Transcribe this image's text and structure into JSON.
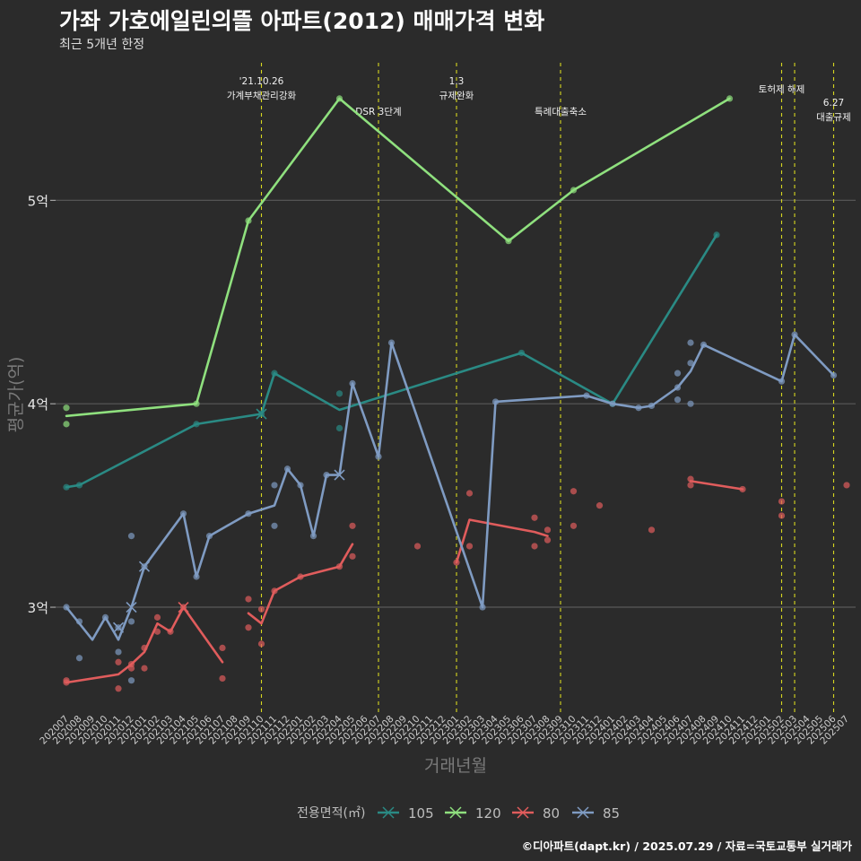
{
  "title": "가좌 가호에일린의뜰 아파트(2012) 매매가격 변화",
  "subtitle": "최근 5개년 한정",
  "caption": "©디아파트(dapt.kr) / 2025.07.29 / 자료=국토교통부 실거래가",
  "chart_data": {
    "type": "line",
    "xlabel": "거래년월",
    "ylabel": "평균가(억)",
    "ylim": [
      2.48,
      5.72
    ],
    "yticks": [
      {
        "v": 3,
        "label": "3억"
      },
      {
        "v": 4,
        "label": "4억"
      },
      {
        "v": 5,
        "label": "5억"
      }
    ],
    "grid": true,
    "legend": {
      "title": "전용면적(㎡)",
      "position": "bottom"
    },
    "x_labels": [
      "202007",
      "202008",
      "202009",
      "202010",
      "202011",
      "202012",
      "202101",
      "202102",
      "202103",
      "202104",
      "202105",
      "202106",
      "202107",
      "202108",
      "202109",
      "202110",
      "202111",
      "202112",
      "202201",
      "202202",
      "202203",
      "202204",
      "202205",
      "202206",
      "202207",
      "202208",
      "202209",
      "202210",
      "202211",
      "202212",
      "202301",
      "202302",
      "202303",
      "202304",
      "202305",
      "202306",
      "202307",
      "202308",
      "202309",
      "202310",
      "202311",
      "202312",
      "202401",
      "202402",
      "202403",
      "202404",
      "202405",
      "202406",
      "202407",
      "202408",
      "202409",
      "202410",
      "202411",
      "202412",
      "202501",
      "202502",
      "202503",
      "202504",
      "202505",
      "202506",
      "202507"
    ],
    "events": [
      {
        "x": "202110",
        "lines": [
          "'21.10.26",
          "가계부채관리강화"
        ]
      },
      {
        "x": "202207",
        "lines": [
          "DSR 3단계"
        ]
      },
      {
        "x": "202301",
        "lines": [
          "1.3",
          "규제완화"
        ]
      },
      {
        "x": "202309",
        "lines": [
          "특례대출축소"
        ]
      },
      {
        "x": "202502",
        "lines": [
          "토허제 해제"
        ]
      },
      {
        "x": "202503",
        "lines": []
      },
      {
        "x": "202506",
        "lines": [
          "6.27",
          "대출규제"
        ]
      }
    ],
    "series": [
      {
        "name": "105",
        "color": "#2a8a84",
        "line": [
          [
            "202007",
            3.59
          ],
          [
            "202008",
            3.6
          ],
          [
            "202105",
            3.9
          ],
          [
            "202110",
            3.95
          ],
          [
            "202111",
            4.15
          ],
          [
            "202204",
            3.97
          ],
          [
            "202306",
            4.25
          ],
          [
            "202401",
            4.0
          ],
          [
            "202409",
            4.83
          ]
        ],
        "points": [
          [
            "202007",
            3.59
          ],
          [
            "202008",
            3.6
          ],
          [
            "202105",
            3.9
          ],
          [
            "202110",
            3.95
          ],
          [
            "202111",
            4.15
          ],
          [
            "202204",
            4.05
          ],
          [
            "202204",
            3.88
          ],
          [
            "202306",
            4.25
          ],
          [
            "202401",
            4.0
          ],
          [
            "202409",
            4.83
          ]
        ],
        "crosses": [
          [
            "202110",
            3.95
          ]
        ]
      },
      {
        "name": "120",
        "color": "#8fe07e",
        "line": [
          [
            "202007",
            3.94
          ],
          [
            "202105",
            4.0
          ],
          [
            "202109",
            4.9
          ],
          [
            "202204",
            5.5
          ],
          [
            "202305",
            4.8
          ],
          [
            "202310",
            5.05
          ],
          [
            "202410",
            5.5
          ]
        ],
        "points": [
          [
            "202007",
            3.98
          ],
          [
            "202007",
            3.9
          ],
          [
            "202105",
            4.0
          ],
          [
            "202109",
            4.9
          ],
          [
            "202204",
            5.5
          ],
          [
            "202305",
            4.8
          ],
          [
            "202310",
            5.05
          ],
          [
            "202410",
            5.5
          ]
        ],
        "crosses": []
      },
      {
        "name": "80",
        "color": "#e05c5c",
        "line": [
          [
            [
              "202007",
              2.63
            ],
            [
              "202011",
              2.67
            ],
            [
              "202012",
              2.72
            ],
            [
              "202101",
              2.78
            ],
            [
              "202102",
              2.92
            ],
            [
              "202103",
              2.88
            ],
            [
              "202104",
              3.0
            ],
            [
              "202107",
              2.73
            ]
          ],
          [
            [
              "202109",
              2.97
            ],
            [
              "202110",
              2.92
            ],
            [
              "202111",
              3.08
            ],
            [
              "202201",
              3.15
            ],
            [
              "202204",
              3.2
            ],
            [
              "202205",
              3.31
            ]
          ],
          [
            [
              "202301",
              3.22
            ],
            [
              "202302",
              3.43
            ],
            [
              "202307",
              3.37
            ],
            [
              "202308",
              3.35
            ]
          ],
          [
            [
              "202407",
              3.62
            ],
            [
              "202411",
              3.58
            ]
          ]
        ],
        "points": [
          [
            "202007",
            2.64
          ],
          [
            "202007",
            2.63
          ],
          [
            "202011",
            2.6
          ],
          [
            "202011",
            2.73
          ],
          [
            "202012",
            2.7
          ],
          [
            "202012",
            2.72
          ],
          [
            "202101",
            2.8
          ],
          [
            "202101",
            2.7
          ],
          [
            "202102",
            2.88
          ],
          [
            "202102",
            2.95
          ],
          [
            "202103",
            2.88
          ],
          [
            "202104",
            3.0
          ],
          [
            "202107",
            2.8
          ],
          [
            "202107",
            2.65
          ],
          [
            "202109",
            3.04
          ],
          [
            "202109",
            2.9
          ],
          [
            "202110",
            2.99
          ],
          [
            "202110",
            2.82
          ],
          [
            "202111",
            3.08
          ],
          [
            "202201",
            3.15
          ],
          [
            "202204",
            3.2
          ],
          [
            "202205",
            3.4
          ],
          [
            "202205",
            3.25
          ],
          [
            "202210",
            3.3
          ],
          [
            "202301",
            3.22
          ],
          [
            "202302",
            3.56
          ],
          [
            "202302",
            3.3
          ],
          [
            "202307",
            3.44
          ],
          [
            "202307",
            3.3
          ],
          [
            "202308",
            3.38
          ],
          [
            "202308",
            3.33
          ],
          [
            "202310",
            3.57
          ],
          [
            "202310",
            3.4
          ],
          [
            "202312",
            3.5
          ],
          [
            "202404",
            3.38
          ],
          [
            "202407",
            3.63
          ],
          [
            "202407",
            3.6
          ],
          [
            "202411",
            3.58
          ],
          [
            "202502",
            3.52
          ],
          [
            "202502",
            3.45
          ],
          [
            "202507",
            3.6
          ]
        ],
        "crosses": [
          [
            "202104",
            3.0
          ]
        ]
      },
      {
        "name": "85",
        "color": "#7f9bc2",
        "line": [
          [
            "202007",
            3.0
          ],
          [
            "202009",
            2.84
          ],
          [
            "202010",
            2.95
          ],
          [
            "202011",
            2.84
          ],
          [
            "202012",
            3.0
          ],
          [
            "202101",
            3.2
          ],
          [
            "202104",
            3.46
          ],
          [
            "202105",
            3.15
          ],
          [
            "202106",
            3.35
          ],
          [
            "202109",
            3.46
          ],
          [
            "202111",
            3.5
          ],
          [
            "202112",
            3.68
          ],
          [
            "202201",
            3.6
          ],
          [
            "202202",
            3.35
          ],
          [
            "202203",
            3.65
          ],
          [
            "202204",
            3.65
          ],
          [
            "202205",
            4.1
          ],
          [
            "202207",
            3.74
          ],
          [
            "202208",
            4.3
          ],
          [
            "202303",
            3.0
          ],
          [
            "202304",
            4.01
          ],
          [
            "202311",
            4.04
          ],
          [
            "202401",
            4.0
          ],
          [
            "202403",
            3.98
          ],
          [
            "202404",
            3.99
          ],
          [
            "202406",
            4.08
          ],
          [
            "202407",
            4.16
          ],
          [
            "202408",
            4.29
          ],
          [
            "202502",
            4.11
          ],
          [
            "202503",
            4.34
          ],
          [
            "202506",
            4.14
          ]
        ],
        "points": [
          [
            "202007",
            3.0
          ],
          [
            "202008",
            2.93
          ],
          [
            "202008",
            2.75
          ],
          [
            "202010",
            2.95
          ],
          [
            "202011",
            2.9
          ],
          [
            "202011",
            2.78
          ],
          [
            "202012",
            3.35
          ],
          [
            "202012",
            2.93
          ],
          [
            "202012",
            2.64
          ],
          [
            "202101",
            3.2
          ],
          [
            "202104",
            3.46
          ],
          [
            "202105",
            3.15
          ],
          [
            "202106",
            3.35
          ],
          [
            "202109",
            3.46
          ],
          [
            "202111",
            3.6
          ],
          [
            "202111",
            3.4
          ],
          [
            "202112",
            3.68
          ],
          [
            "202201",
            3.6
          ],
          [
            "202202",
            3.35
          ],
          [
            "202203",
            3.65
          ],
          [
            "202205",
            4.1
          ],
          [
            "202207",
            3.74
          ],
          [
            "202208",
            4.3
          ],
          [
            "202303",
            3.0
          ],
          [
            "202304",
            4.01
          ],
          [
            "202311",
            4.04
          ],
          [
            "202401",
            4.0
          ],
          [
            "202403",
            3.98
          ],
          [
            "202404",
            3.99
          ],
          [
            "202406",
            4.08
          ],
          [
            "202406",
            4.15
          ],
          [
            "202406",
            4.02
          ],
          [
            "202407",
            4.3
          ],
          [
            "202407",
            4.2
          ],
          [
            "202407",
            4.0
          ],
          [
            "202408",
            4.29
          ],
          [
            "202502",
            4.11
          ],
          [
            "202503",
            4.34
          ],
          [
            "202506",
            4.14
          ]
        ],
        "crosses": [
          [
            "202011",
            2.9
          ],
          [
            "202012",
            3.0
          ],
          [
            "202101",
            3.2
          ],
          [
            "202204",
            3.65
          ]
        ]
      }
    ]
  }
}
